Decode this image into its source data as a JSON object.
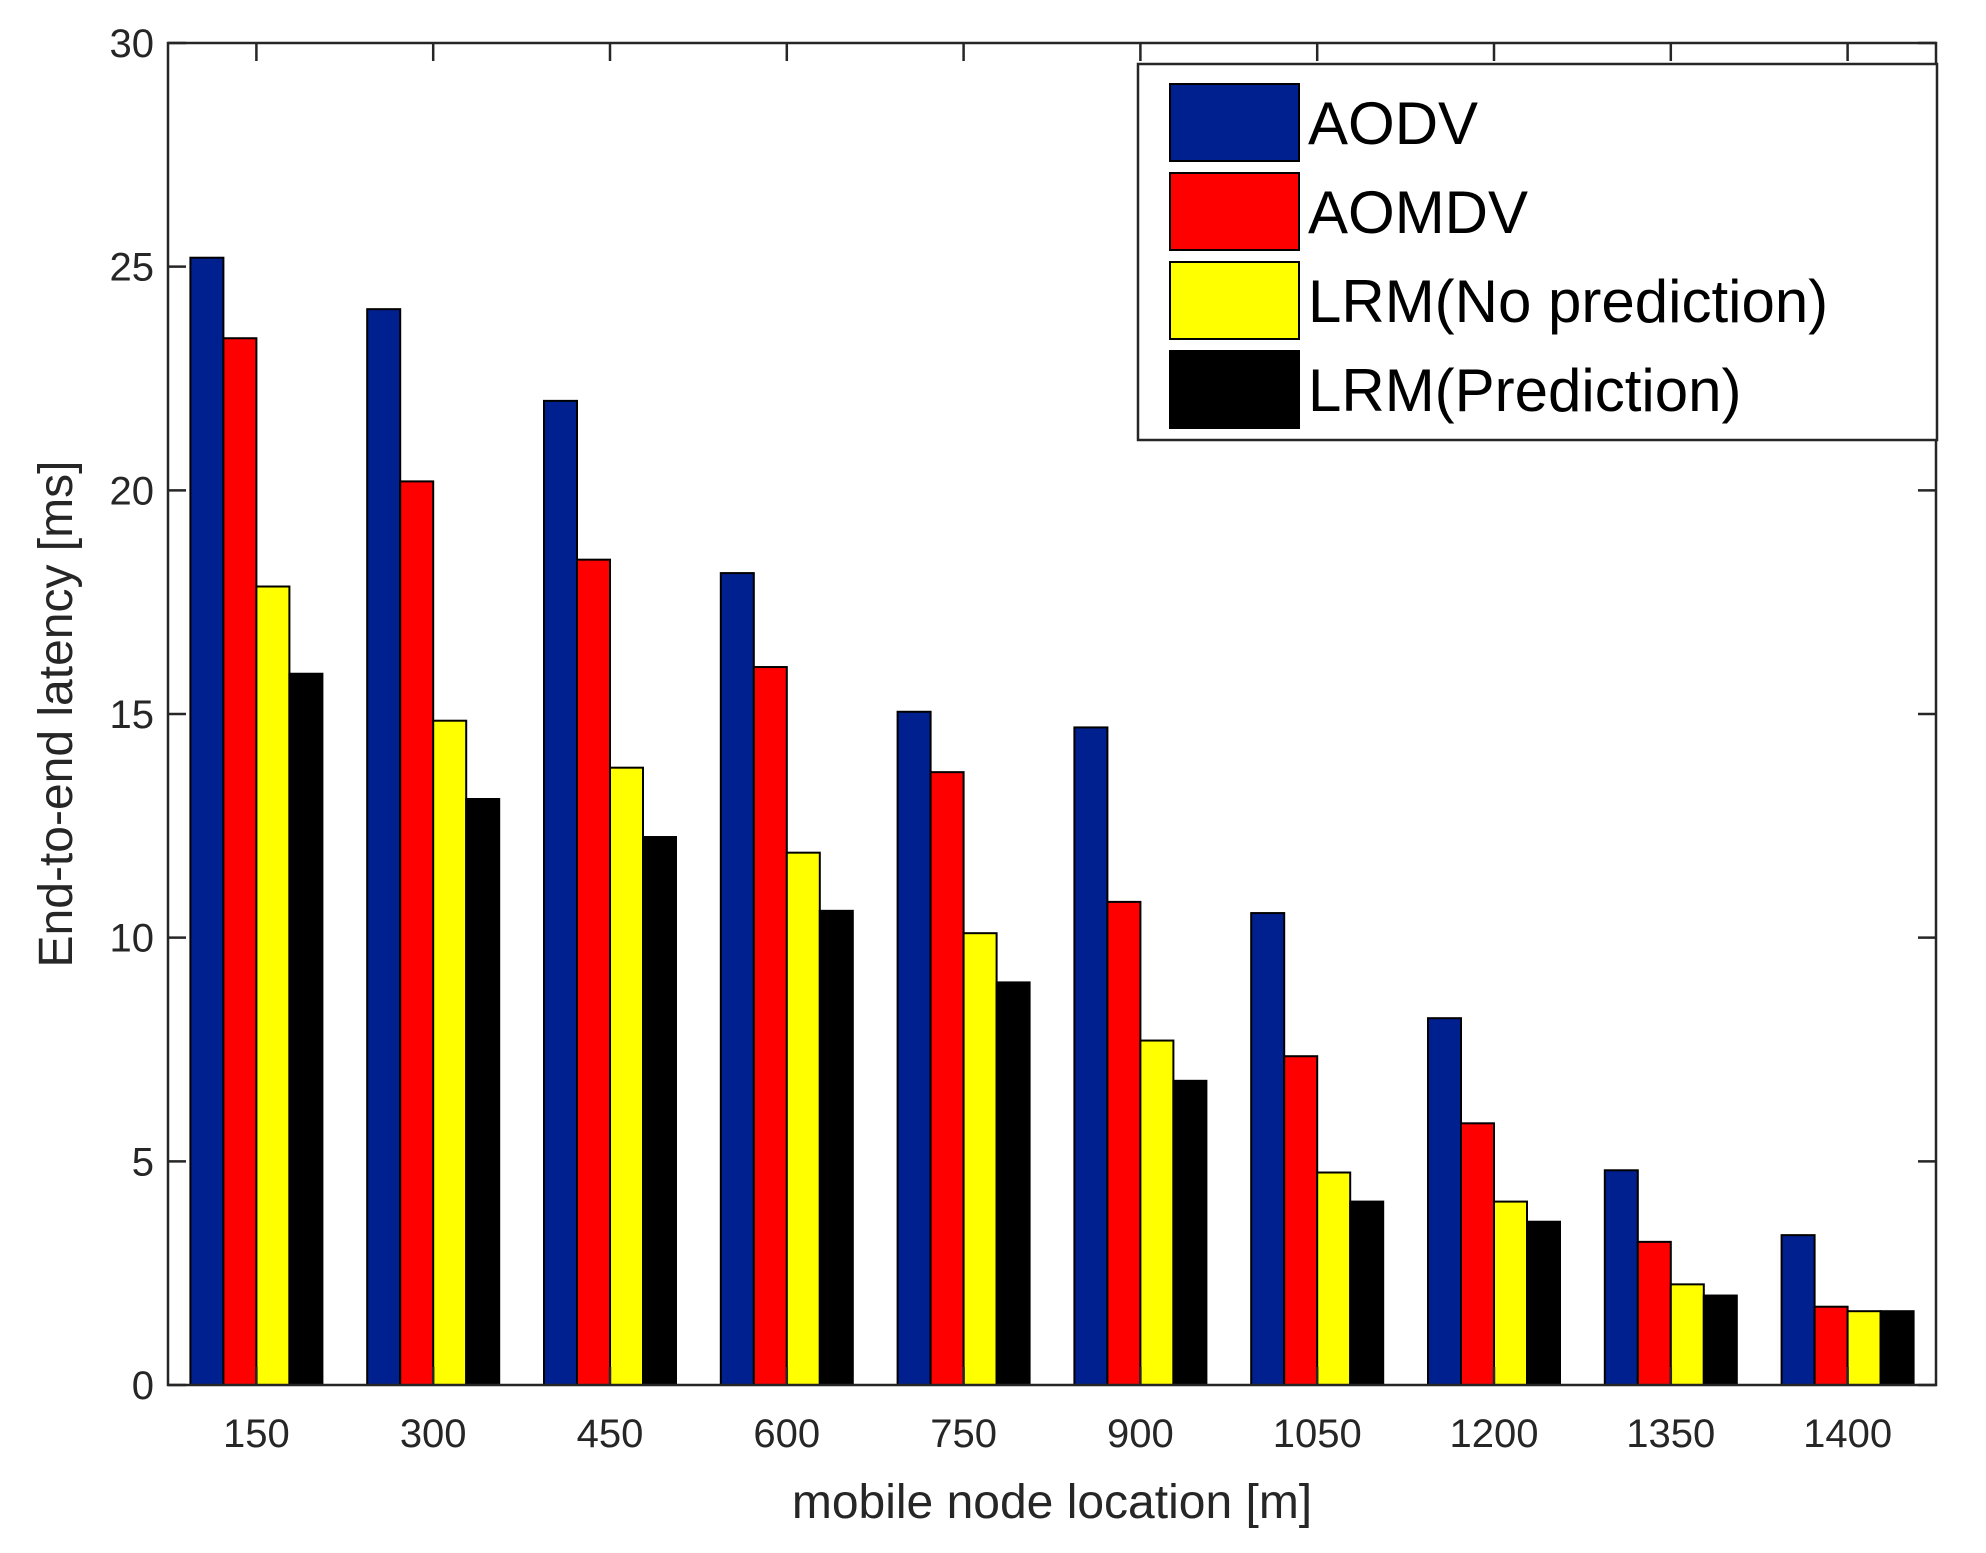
{
  "chart_data": {
    "type": "bar",
    "title": "",
    "xlabel": "mobile node location [m]",
    "ylabel": "End-to-end latency [ms]",
    "categories": [
      "150",
      "300",
      "450",
      "600",
      "750",
      "900",
      "1050",
      "1200",
      "1350",
      "1400"
    ],
    "ylim": [
      0,
      30
    ],
    "yticks": [
      0,
      5,
      10,
      15,
      20,
      25,
      30
    ],
    "grid": false,
    "legend_position": "top-right",
    "series": [
      {
        "name": "AODV",
        "color": "#00208f",
        "values": [
          25.2,
          24.05,
          22.0,
          18.15,
          15.05,
          14.7,
          10.55,
          8.2,
          4.8,
          3.35
        ]
      },
      {
        "name": "AOMDV",
        "color": "#ff0000",
        "values": [
          23.4,
          20.2,
          18.45,
          16.05,
          13.7,
          10.8,
          7.35,
          5.85,
          3.2,
          1.75
        ]
      },
      {
        "name": "LRM(No prediction)",
        "color": "#ffff00",
        "values": [
          17.85,
          14.85,
          13.8,
          11.9,
          10.1,
          7.7,
          4.75,
          4.1,
          2.25,
          1.65
        ]
      },
      {
        "name": "LRM(Prediction)",
        "color": "#000000",
        "values": [
          15.9,
          13.1,
          12.25,
          10.6,
          9.0,
          6.8,
          4.1,
          3.65,
          2.0,
          1.65
        ]
      }
    ]
  }
}
